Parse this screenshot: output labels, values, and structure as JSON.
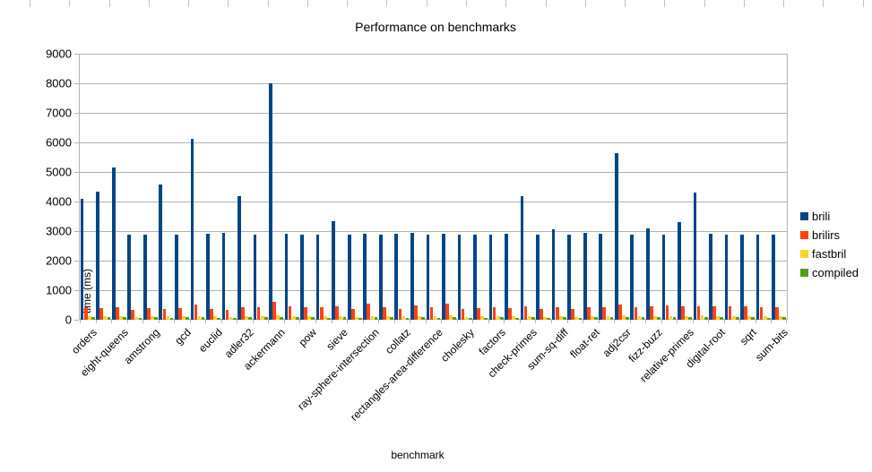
{
  "chart_data": {
    "type": "bar",
    "title": "Performance on benchmarks",
    "xlabel": "benchmark",
    "ylabel": "time (ms)",
    "ylim": [
      0,
      9000
    ],
    "ytick_interval": 1000,
    "grid": true,
    "legend_position": "right",
    "categories": [
      "orders",
      "",
      "eight-queens",
      "",
      "amstrong",
      "",
      "gcd",
      "",
      "euclid",
      "",
      "adler32",
      "",
      "ackermann",
      "",
      "pow",
      "",
      "sieve",
      "",
      "ray-sphere-intersection",
      "",
      "collatz",
      "",
      "rectangles-area-difference",
      "",
      "cholesky",
      "",
      "factors",
      "",
      "check-primes",
      "",
      "sum-sq-diff",
      "",
      "float-ret",
      "",
      "adj2csr",
      "",
      "fizz-buzz",
      "",
      "relative-primes",
      "",
      "digital-root",
      "",
      "sqrt",
      "",
      "sum-bits"
    ],
    "series": [
      {
        "name": "brili",
        "color": "#004586",
        "values": [
          4080,
          4330,
          5140,
          2870,
          2890,
          4570,
          2890,
          6120,
          2900,
          2930,
          4190,
          2890,
          8010,
          2900,
          2880,
          2890,
          3330,
          2880,
          2900,
          2890,
          2900,
          2930,
          2880,
          2900,
          2890,
          2890,
          2890,
          2900,
          4180,
          2890,
          3070,
          2890,
          2940,
          2900,
          5640,
          2890,
          3090,
          2880,
          3310,
          4300,
          2910,
          2880,
          2890,
          2880,
          2870
        ]
      },
      {
        "name": "brilirs",
        "color": "#FF420E",
        "values": [
          410,
          395,
          435,
          345,
          405,
          365,
          385,
          505,
          365,
          345,
          425,
          415,
          615,
          465,
          435,
          415,
          445,
          375,
          560,
          420,
          365,
          485,
          415,
          545,
          365,
          385,
          415,
          395,
          445,
          365,
          415,
          375,
          430,
          435,
          515,
          415,
          465,
          485,
          445,
          440,
          455,
          440,
          450,
          430,
          420
        ]
      },
      {
        "name": "fastbril",
        "color": "#FFD320",
        "values": [
          120,
          110,
          130,
          105,
          115,
          110,
          115,
          130,
          110,
          105,
          120,
          115,
          150,
          120,
          115,
          110,
          125,
          105,
          130,
          115,
          110,
          135,
          110,
          160,
          105,
          110,
          115,
          110,
          125,
          105,
          120,
          105,
          115,
          120,
          140,
          115,
          125,
          130,
          120,
          150,
          125,
          120,
          125,
          115,
          120
        ]
      },
      {
        "name": "compiled",
        "color": "#579D1C",
        "values": [
          85,
          80,
          85,
          75,
          80,
          75,
          80,
          85,
          75,
          70,
          80,
          80,
          90,
          80,
          80,
          75,
          85,
          70,
          80,
          80,
          75,
          85,
          70,
          85,
          75,
          75,
          80,
          75,
          85,
          75,
          80,
          75,
          80,
          80,
          85,
          80,
          85,
          85,
          80,
          85,
          80,
          80,
          85,
          75,
          80
        ]
      }
    ]
  }
}
